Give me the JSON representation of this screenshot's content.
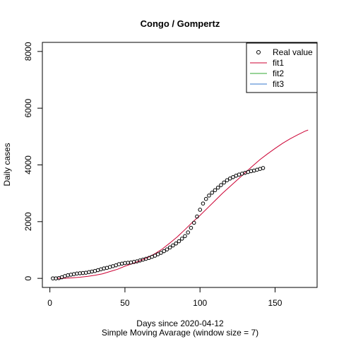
{
  "chart_data": {
    "type": "scatter",
    "title": "Congo / Gompertz",
    "xlabel": "Days since 2020-04-12",
    "xlabel2": "Simple Moving Avarage (window size = 7)",
    "ylabel": "Daily cases",
    "xlim": [
      -5,
      178
    ],
    "ylim": [
      -320,
      8320
    ],
    "xticks": [
      0,
      50,
      100,
      150
    ],
    "yticks": [
      0,
      2000,
      4000,
      6000,
      8000
    ],
    "legend_position": "top-right",
    "legend": [
      {
        "label": "Real value",
        "kind": "point",
        "color": "#000000"
      },
      {
        "label": "fit1",
        "kind": "line",
        "color": "#cc0033"
      },
      {
        "label": "fit2",
        "kind": "line",
        "color": "#33aa33"
      },
      {
        "label": "fit3",
        "kind": "line",
        "color": "#3377cc"
      }
    ],
    "series": [
      {
        "name": "Real value",
        "kind": "points",
        "color": "#000000",
        "x": [
          2,
          4,
          6,
          8,
          10,
          12,
          14,
          16,
          18,
          20,
          22,
          24,
          26,
          28,
          30,
          32,
          34,
          36,
          38,
          40,
          42,
          44,
          46,
          48,
          50,
          52,
          54,
          56,
          58,
          60,
          62,
          64,
          66,
          68,
          70,
          72,
          74,
          76,
          78,
          80,
          82,
          84,
          86,
          88,
          90,
          92,
          94,
          96,
          98,
          100,
          102,
          104,
          106,
          108,
          110,
          112,
          114,
          116,
          118,
          120,
          122,
          124,
          126,
          128,
          130,
          132,
          134,
          136,
          138,
          140,
          142
        ],
        "values": [
          0,
          0,
          10,
          40,
          80,
          110,
          130,
          150,
          170,
          180,
          190,
          200,
          220,
          240,
          260,
          290,
          320,
          350,
          370,
          400,
          430,
          460,
          500,
          520,
          540,
          550,
          560,
          580,
          600,
          630,
          660,
          690,
          720,
          760,
          800,
          850,
          900,
          960,
          1020,
          1090,
          1160,
          1230,
          1310,
          1400,
          1490,
          1620,
          1780,
          1960,
          2180,
          2420,
          2640,
          2800,
          2920,
          3020,
          3110,
          3200,
          3290,
          3380,
          3460,
          3520,
          3570,
          3620,
          3660,
          3690,
          3720,
          3750,
          3780,
          3800,
          3830,
          3860,
          3890
        ]
      },
      {
        "name": "fit1",
        "kind": "line",
        "color": "#cc0033",
        "x": [
          5,
          10,
          15,
          20,
          25,
          30,
          35,
          40,
          45,
          50,
          55,
          60,
          65,
          70,
          75,
          80,
          85,
          90,
          95,
          100,
          105,
          110,
          115,
          120,
          125,
          130,
          135,
          140,
          145,
          150,
          155,
          160,
          165,
          170,
          172
        ],
        "values": [
          0,
          5,
          20,
          40,
          70,
          110,
          160,
          240,
          320,
          430,
          520,
          620,
          730,
          870,
          1040,
          1250,
          1470,
          1720,
          1980,
          2220,
          2480,
          2740,
          3000,
          3240,
          3480,
          3720,
          3960,
          4190,
          4390,
          4580,
          4760,
          4920,
          5060,
          5190,
          5230
        ]
      },
      {
        "name": "fit2",
        "kind": "line",
        "color": "#33aa33",
        "x": [],
        "values": []
      },
      {
        "name": "fit3",
        "kind": "line",
        "color": "#3377cc",
        "x": [],
        "values": []
      }
    ]
  }
}
